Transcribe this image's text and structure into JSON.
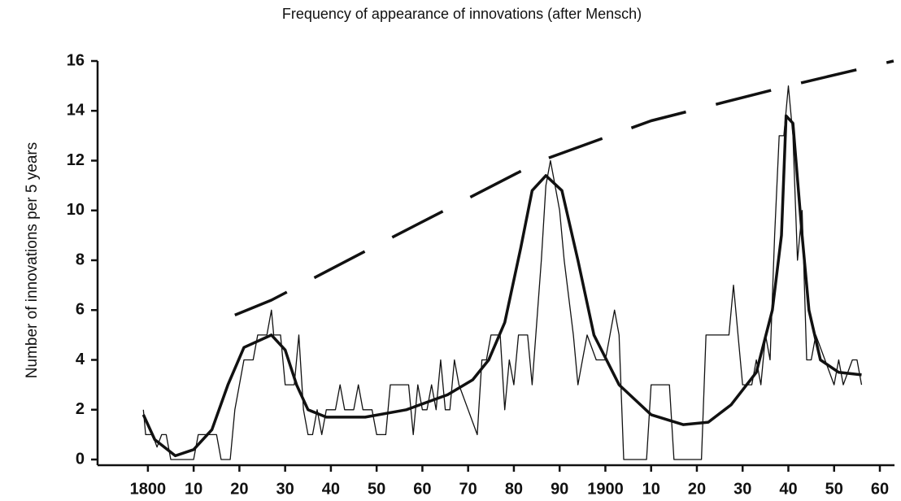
{
  "chart_data": {
    "type": "line",
    "title": "Frequency of appearance of innovations (after Mensch)",
    "ylabel": "Number of innovations per 5 years",
    "xlim": [
      1789,
      1960
    ],
    "ylim": [
      0,
      16
    ],
    "xticks": [
      1800,
      {
        "value": 1810,
        "label": "10"
      },
      {
        "value": 1820,
        "label": "20"
      },
      {
        "value": 1830,
        "label": "30"
      },
      {
        "value": 1840,
        "label": "40"
      },
      {
        "value": 1850,
        "label": "50"
      },
      {
        "value": 1860,
        "label": "60"
      },
      {
        "value": 1870,
        "label": "70"
      },
      {
        "value": 1880,
        "label": "80"
      },
      {
        "value": 1890,
        "label": "90"
      },
      1900,
      {
        "value": 1910,
        "label": "10"
      },
      {
        "value": 1920,
        "label": "20"
      },
      {
        "value": 1930,
        "label": "30"
      },
      {
        "value": 1940,
        "label": "40"
      },
      {
        "value": 1950,
        "label": "50"
      },
      {
        "value": 1960,
        "label": "60"
      }
    ],
    "yticks": [
      0,
      2,
      4,
      6,
      8,
      10,
      12,
      14,
      16
    ],
    "series": [
      {
        "color": "#111111",
        "width": 1.3,
        "x": [
          1799,
          1799.5,
          1801,
          1802,
          1803,
          1804,
          1805,
          1810,
          1811,
          1815,
          1816,
          1818,
          1819,
          1820,
          1821,
          1823,
          1824,
          1826,
          1827,
          1827.5,
          1829,
          1830,
          1832,
          1833,
          1834,
          1835,
          1836,
          1837,
          1838,
          1839,
          1841,
          1842,
          1843,
          1845,
          1846,
          1847,
          1849,
          1850,
          1852,
          1853,
          1857,
          1858,
          1859,
          1860,
          1861,
          1862,
          1863,
          1864,
          1865,
          1866,
          1867,
          1868,
          1870,
          1872,
          1873,
          1874,
          1875,
          1877,
          1878,
          1879,
          1880,
          1881,
          1883,
          1884,
          1886,
          1887,
          1888,
          1889,
          1890,
          1891,
          1893,
          1894,
          1895,
          1896,
          1898,
          1900,
          1901,
          1902,
          1903,
          1904,
          1909,
          1910,
          1914,
          1915,
          1921,
          1922,
          1927,
          1928,
          1929,
          1930,
          1932,
          1933,
          1934,
          1935,
          1936,
          1937,
          1938,
          1939,
          1940,
          1941,
          1942,
          1943,
          1944,
          1945,
          1946,
          1948,
          1950,
          1951,
          1952,
          1954,
          1955,
          1956
        ],
        "values": [
          2,
          1,
          1,
          0.5,
          1,
          1,
          0,
          0,
          1,
          1,
          0,
          0,
          2,
          3,
          4,
          4,
          5,
          5,
          6,
          5,
          5,
          3,
          3,
          5,
          2,
          1,
          1,
          2,
          1,
          2,
          2,
          3,
          2,
          2,
          3,
          2,
          2,
          1,
          1,
          3,
          3,
          1,
          3,
          2,
          2,
          3,
          2,
          4,
          2,
          2,
          4,
          3,
          2,
          1,
          4,
          4,
          5,
          5,
          2,
          4,
          3,
          5,
          5,
          3,
          8,
          11,
          12,
          11,
          10,
          8,
          5,
          3,
          4,
          5,
          4,
          4,
          5,
          6,
          5,
          0,
          0,
          3,
          3,
          0,
          0,
          5,
          5,
          7,
          5,
          3,
          3,
          4,
          3,
          5,
          4,
          9,
          13,
          13,
          15,
          13,
          8,
          10,
          4,
          4,
          5,
          4,
          3,
          4,
          3,
          4,
          4,
          3
        ]
      },
      {
        "color": "#111111",
        "width": 3.5,
        "x": [
          1799,
          1801.5,
          1806,
          1810,
          1814,
          1817.5,
          1821,
          1827,
          1830,
          1832.5,
          1835,
          1839,
          1847.5,
          1856.5,
          1865.5,
          1871,
          1874.5,
          1878,
          1881.5,
          1884,
          1887,
          1890.5,
          1894,
          1897.5,
          1903,
          1910,
          1917,
          1922.5,
          1927.5,
          1933,
          1936.5,
          1938.5,
          1939.5,
          1941,
          1943,
          1944.5,
          1947,
          1951,
          1956
        ],
        "values": [
          1.8,
          0.8,
          0.15,
          0.4,
          1.2,
          3,
          4.5,
          5,
          4.4,
          3,
          2,
          1.7,
          1.7,
          2,
          2.6,
          3.2,
          4,
          5.5,
          8.5,
          10.8,
          11.4,
          10.8,
          8,
          5,
          3,
          1.8,
          1.4,
          1.5,
          2.2,
          3.5,
          6,
          9,
          13.8,
          13.5,
          9,
          6,
          4,
          3.5,
          3.4
        ]
      },
      {
        "color": "#111111",
        "width": 3.5,
        "style": "dashed",
        "x": [
          1819,
          1827,
          1850,
          1886,
          1910,
          1940,
          1963
        ],
        "values": [
          5.8,
          6.4,
          8.6,
          12,
          13.6,
          15,
          16
        ]
      }
    ]
  }
}
